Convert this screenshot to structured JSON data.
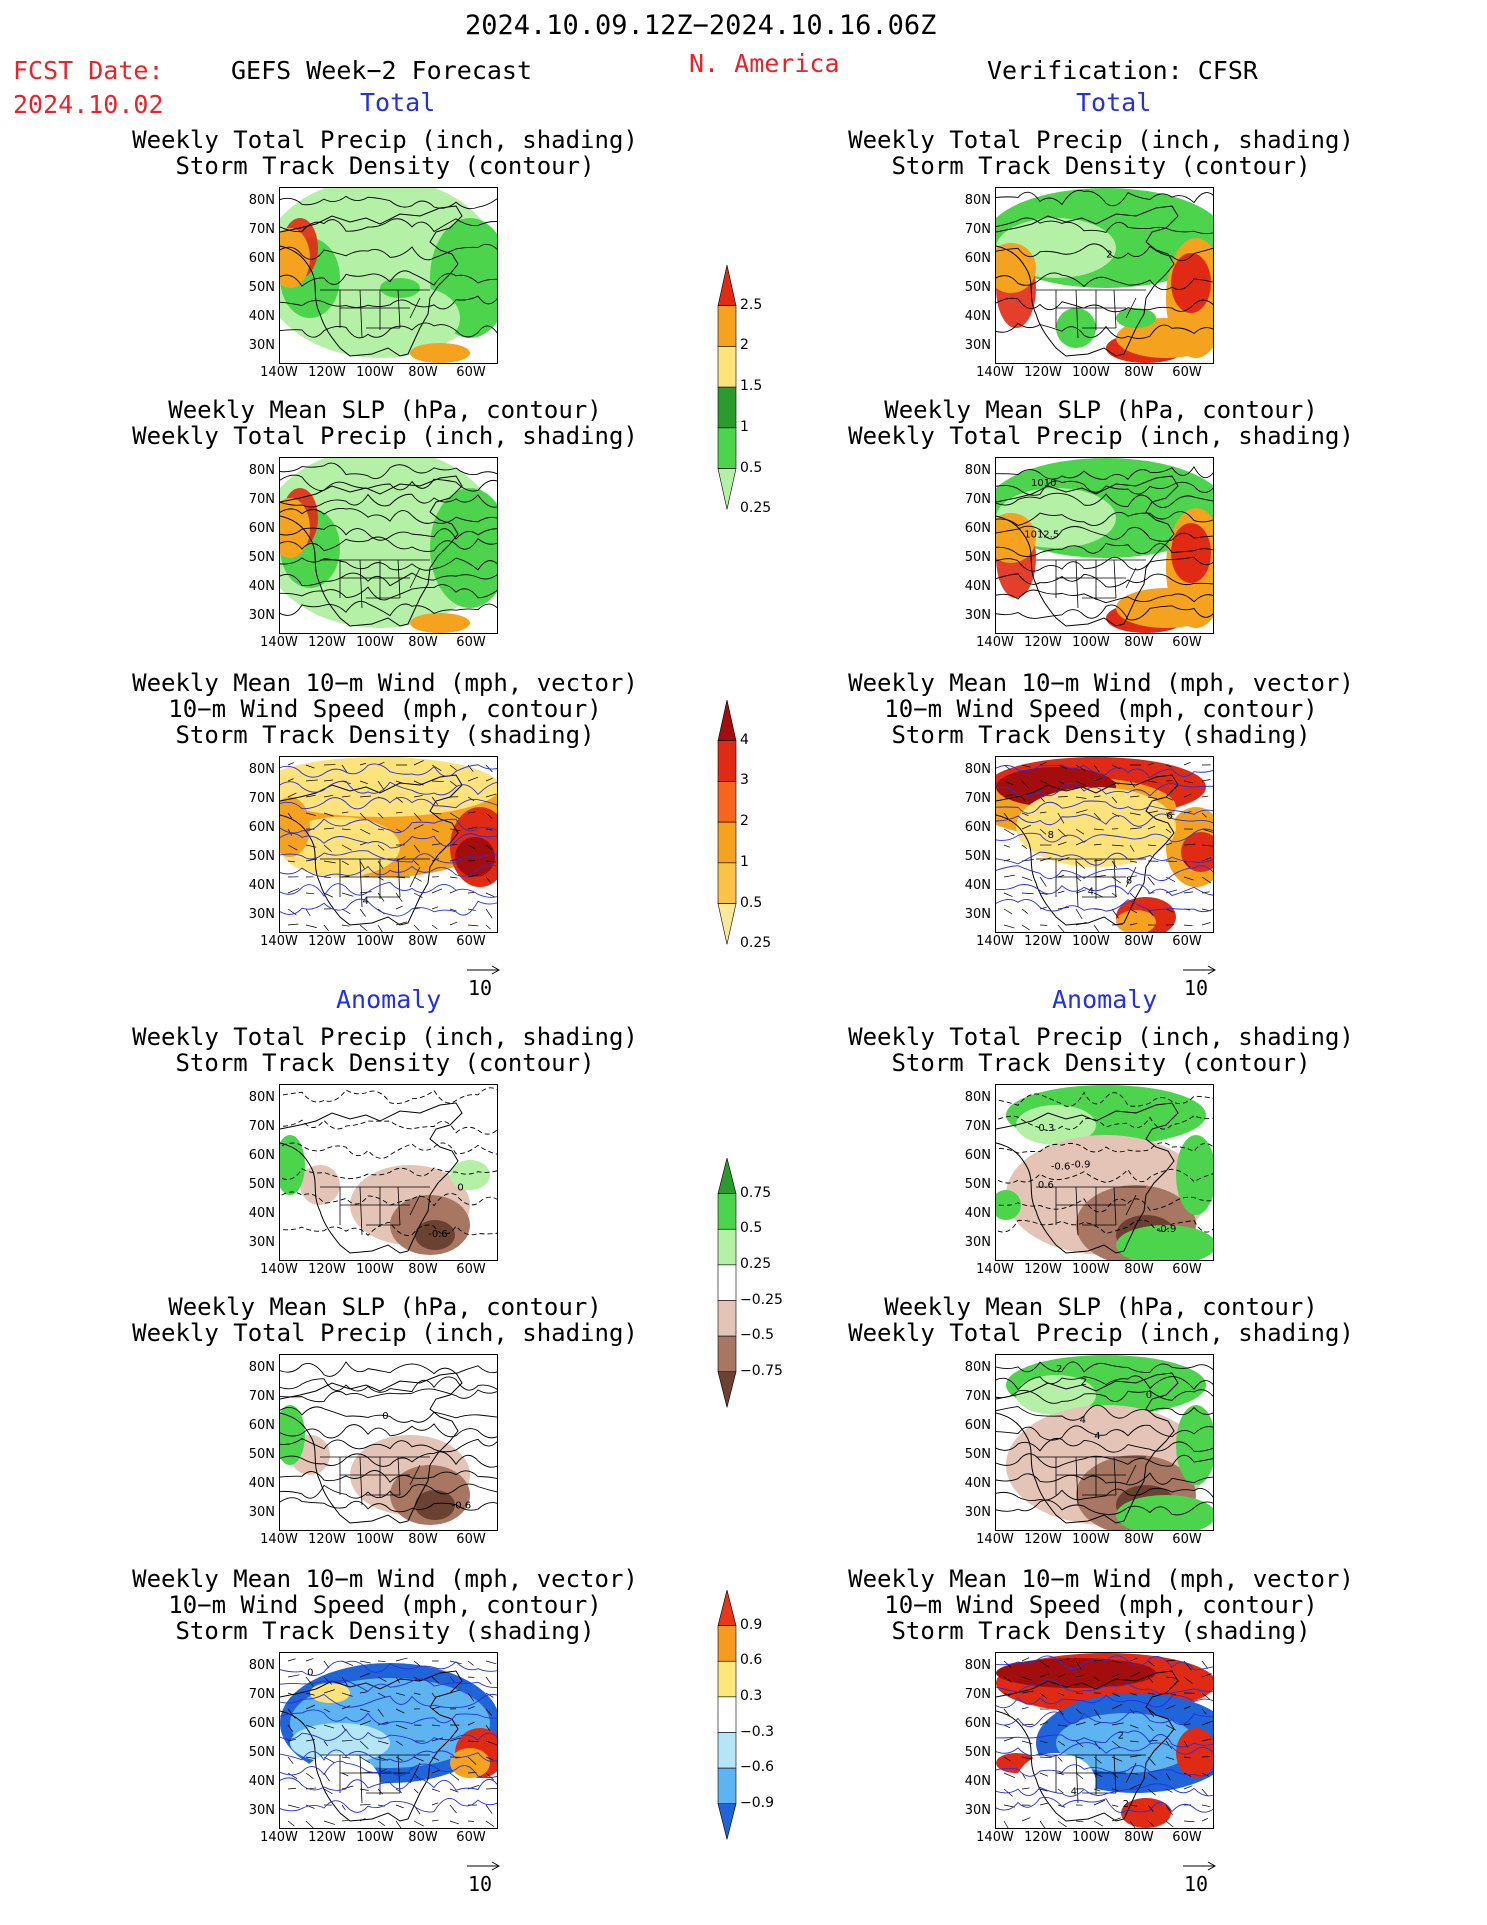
{
  "header": {
    "date_range": "2024.10.09.12Z−2024.10.16.06Z",
    "fcst_label": "FCST Date:",
    "fcst_date": "2024.10.02",
    "left_title": "GEFS Week−2 Forecast",
    "region": "N. America",
    "right_title": "Verification: CFSR"
  },
  "sections": {
    "total": "Total",
    "anomaly": "Anomaly"
  },
  "titles": {
    "precip_storm": [
      "Weekly Total Precip (inch, shading)",
      "Storm Track Density (contour)"
    ],
    "slp_precip": [
      "Weekly Mean SLP (hPa, contour)",
      "Weekly Total Precip (inch, shading)"
    ],
    "wind_storm": [
      "Weekly Mean 10−m Wind (mph, vector)",
      "10−m Wind Speed (mph, contour)",
      "Storm Track Density (shading)"
    ]
  },
  "axes": {
    "lat_labels": [
      "80N",
      "70N",
      "60N",
      "50N",
      "40N",
      "30N"
    ],
    "lon_labels": [
      "140W",
      "120W",
      "100W",
      "80W",
      "60W"
    ],
    "ref_vector": "10"
  },
  "colorbars": {
    "precip_total": {
      "labels": [
        "2.5",
        "2",
        "1.5",
        "1",
        "0.5",
        "0.25"
      ],
      "colors": [
        "#e02a14",
        "#f5a21e",
        "#fde37a",
        "#2b9b2e",
        "#4cd54c",
        "#b4f0a6"
      ]
    },
    "storm_total": {
      "labels": [
        "4",
        "3",
        "2",
        "1",
        "0.5",
        "0.25"
      ],
      "colors": [
        "#a30d0d",
        "#e12a14",
        "#f5651e",
        "#f5a21e",
        "#fbc247",
        "#fde79a"
      ]
    },
    "precip_anom": {
      "labels": [
        "0.75",
        "0.5",
        "0.25",
        "−0.25",
        "−0.5",
        "−0.75"
      ],
      "colors": [
        "#2b9b2e",
        "#4cd54c",
        "#b4f0a6",
        "#ffffff",
        "#e3c4b6",
        "#a77763",
        "#6b4131"
      ]
    },
    "storm_anom": {
      "labels": [
        "0.9",
        "0.6",
        "0.3",
        "−0.3",
        "−0.6",
        "−0.9"
      ],
      "colors": [
        "#e8361a",
        "#f59b1f",
        "#fde77a",
        "#ffffff",
        "#b5e6f8",
        "#5db4f0",
        "#1f64d8"
      ]
    }
  },
  "contour_labels": {
    "fc_total_precip": [],
    "obs_total_precip": [
      "2"
    ],
    "obs_total_slp": [
      "1010",
      "1012.5"
    ],
    "fc_total_wind": [
      "4"
    ],
    "obs_total_wind": [
      "8",
      "8",
      "6",
      "4"
    ],
    "fc_anom_precip": [
      "0",
      "-0.6"
    ],
    "obs_anom_precip": [
      "-0.6",
      "-0.9",
      "0.3",
      "-0.9",
      "0.6"
    ],
    "obs_anom_slp": [
      "0",
      "4",
      "2",
      "2",
      "4"
    ],
    "fc_anom_wind": [
      "0"
    ],
    "obs_anom_wind": [
      "4",
      "2",
      "2"
    ]
  }
}
